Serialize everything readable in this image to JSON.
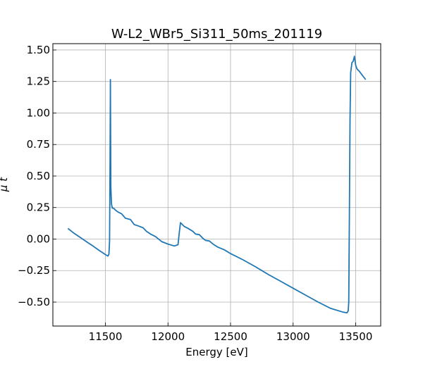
{
  "chart_data": {
    "type": "line",
    "title": "W-L2_WBr5_Si311_50ms_201119",
    "xlabel": "Energy [eV]",
    "ylabel": "μ t",
    "xlim": [
      11080,
      13700
    ],
    "ylim": [
      -0.69,
      1.55
    ],
    "xticks": [
      11500,
      12000,
      12500,
      13000,
      13500
    ],
    "xtick_labels": [
      "11500",
      "12000",
      "12500",
      "13000",
      "13500"
    ],
    "yticks": [
      -0.5,
      -0.25,
      0.0,
      0.25,
      0.5,
      0.75,
      1.0,
      1.25,
      1.5
    ],
    "ytick_labels": [
      "−0.50",
      "−0.25",
      "0.00",
      "0.25",
      "0.50",
      "0.75",
      "1.00",
      "1.25",
      "1.50"
    ],
    "grid": true,
    "legend": "none",
    "series": [
      {
        "color": "#1f77b4",
        "x": [
          11200,
          11250,
          11300,
          11350,
          11400,
          11450,
          11500,
          11520,
          11528,
          11533,
          11537,
          11540,
          11543,
          11548,
          11555,
          11565,
          11580,
          11600,
          11630,
          11660,
          11700,
          11730,
          11760,
          11800,
          11830,
          11860,
          11900,
          11950,
          12000,
          12050,
          12080,
          12090,
          12100,
          12110,
          12130,
          12160,
          12200,
          12220,
          12250,
          12280,
          12300,
          12330,
          12360,
          12400,
          12450,
          12500,
          12600,
          12700,
          12800,
          12900,
          13000,
          13100,
          13200,
          13300,
          13400,
          13430,
          13440,
          13445,
          13450,
          13455,
          13460,
          13470,
          13480,
          13490,
          13500,
          13510,
          13530,
          13560,
          13580
        ],
        "y": [
          0.085,
          0.045,
          0.012,
          -0.022,
          -0.055,
          -0.09,
          -0.123,
          -0.135,
          -0.12,
          -0.02,
          0.6,
          1.265,
          0.42,
          0.28,
          0.245,
          0.245,
          0.23,
          0.215,
          0.2,
          0.165,
          0.155,
          0.115,
          0.105,
          0.09,
          0.06,
          0.04,
          0.02,
          -0.02,
          -0.04,
          -0.055,
          -0.045,
          0.05,
          0.13,
          0.12,
          0.1,
          0.085,
          0.06,
          0.04,
          0.035,
          0.005,
          -0.01,
          -0.015,
          -0.04,
          -0.065,
          -0.085,
          -0.115,
          -0.165,
          -0.22,
          -0.28,
          -0.335,
          -0.39,
          -0.445,
          -0.5,
          -0.55,
          -0.58,
          -0.585,
          -0.57,
          -0.5,
          0.2,
          0.95,
          1.32,
          1.4,
          1.41,
          1.45,
          1.38,
          1.35,
          1.33,
          1.29,
          1.265
        ]
      }
    ]
  }
}
